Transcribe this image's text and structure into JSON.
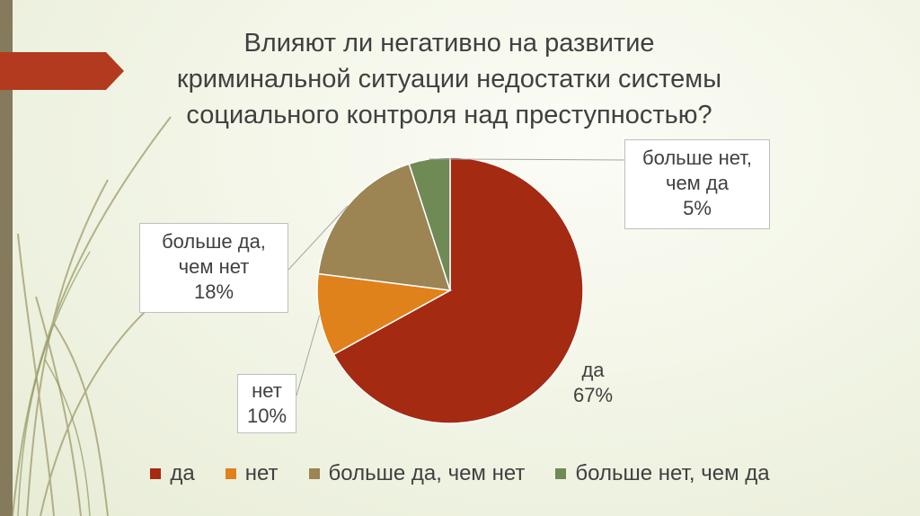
{
  "title_lines": [
    "Влияют ли негативно на развитие",
    "криминальной ситуации недостатки системы",
    "социального контроля над преступностью?"
  ],
  "chart_data": {
    "type": "pie",
    "title": "Влияют ли негативно на развитие криминальной ситуации недостатки системы социального контроля над преступностью?",
    "categories": [
      "да",
      "нет",
      "больше да, чем нет",
      "больше нет, чем да"
    ],
    "values": [
      67,
      10,
      18,
      5
    ],
    "colors": [
      "#a52a12",
      "#e0821b",
      "#9c8453",
      "#6f8a55"
    ],
    "legend_position": "bottom"
  },
  "labels": {
    "da": {
      "line1": "да",
      "line2": "67%"
    },
    "net": {
      "line1": "нет",
      "line2": "10%"
    },
    "more_yes": {
      "line1": "больше да,",
      "line2": "чем нет",
      "line3": "18%"
    },
    "more_no": {
      "line1": "больше нет,",
      "line2": "чем да",
      "line3": "5%"
    }
  },
  "legend": [
    {
      "label": "да",
      "color": "#a52a12"
    },
    {
      "label": "нет",
      "color": "#e0821b"
    },
    {
      "label": "больше да, чем нет",
      "color": "#9c8453"
    },
    {
      "label": "больше нет, чем да",
      "color": "#6f8a55"
    }
  ]
}
